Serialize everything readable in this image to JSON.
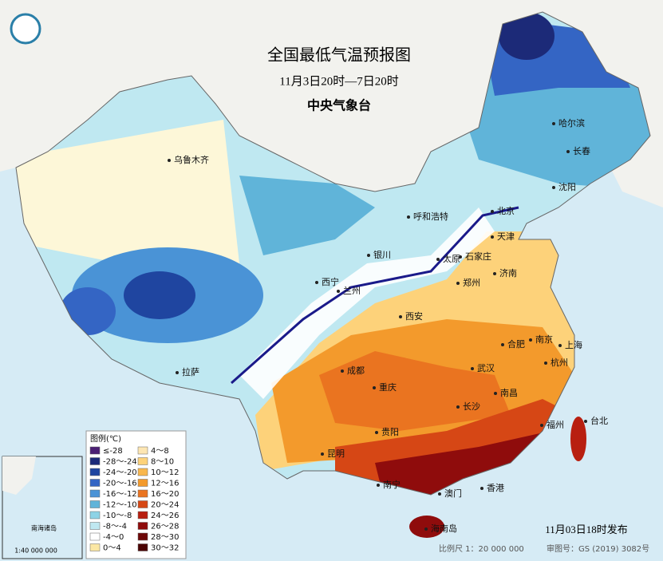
{
  "header": {
    "title": "全国最低气温预报图",
    "subtitle": "11月3日20时—7日20时",
    "issuer": "中央气象台"
  },
  "legend": {
    "title": "图例(℃)",
    "items": [
      {
        "label": "≤-28",
        "color": "#4b1f74"
      },
      {
        "label": "-28～-24",
        "color": "#1c2a78"
      },
      {
        "label": "-24～-20",
        "color": "#1f45a0"
      },
      {
        "label": "-20～-16",
        "color": "#3465c4"
      },
      {
        "label": "-16～-12",
        "color": "#4a93d6"
      },
      {
        "label": "-12～-10",
        "color": "#60b4d9"
      },
      {
        "label": "-10～-8",
        "color": "#8dd3e6"
      },
      {
        "label": "-8～-4",
        "color": "#bfe8f1"
      },
      {
        "label": "-4～0",
        "color": "#ffffff"
      },
      {
        "label": "0～4",
        "color": "#fbe7a4"
      },
      {
        "label": "4～8",
        "color": "#fde6b3"
      },
      {
        "label": "8～10",
        "color": "#fdd27a"
      },
      {
        "label": "10～12",
        "color": "#f9b74d"
      },
      {
        "label": "12～16",
        "color": "#f39a2c"
      },
      {
        "label": "16～20",
        "color": "#ea7420"
      },
      {
        "label": "20～24",
        "color": "#d64715"
      },
      {
        "label": "24～26",
        "color": "#b81f10"
      },
      {
        "label": "26～28",
        "color": "#8f0c0c"
      },
      {
        "label": "28～30",
        "color": "#6d0808"
      },
      {
        "label": "30～32",
        "color": "#4a0303"
      }
    ]
  },
  "cities": [
    "乌鲁木齐",
    "哈尔滨",
    "长春",
    "沈阳",
    "北京",
    "天津",
    "呼和浩特",
    "银川",
    "太原",
    "石家庄",
    "济南",
    "西宁",
    "兰州",
    "西安",
    "郑州",
    "合肥",
    "南京",
    "上海",
    "杭州",
    "成都",
    "重庆",
    "武汉",
    "南昌",
    "长沙",
    "贵阳",
    "拉萨",
    "昆明",
    "福州",
    "台北",
    "南宁",
    "澳门",
    "香港",
    "海南岛"
  ],
  "inset": {
    "title": "南海诸岛",
    "scale": "1:40 000 000"
  },
  "footer": {
    "issued": "11月03日18时发布",
    "scale": "比例尺 1：20 000 000",
    "approval": "审图号：GS (2019) 3082号"
  }
}
